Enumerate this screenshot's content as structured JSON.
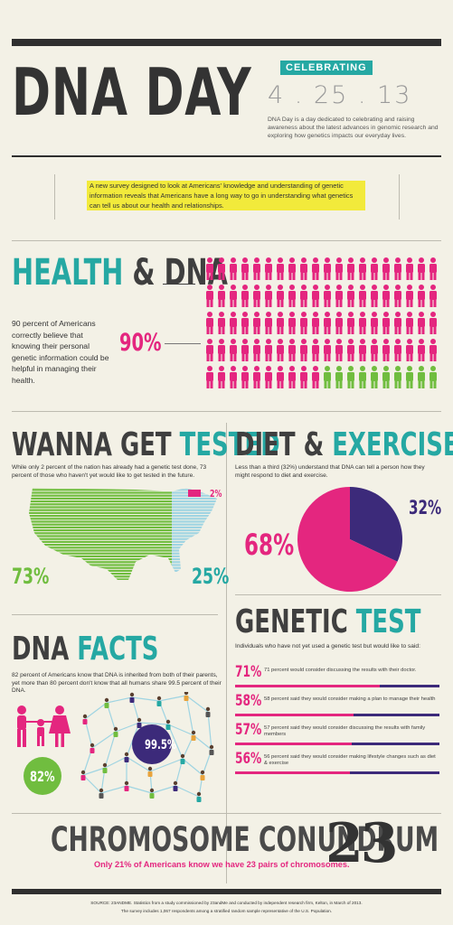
{
  "header": {
    "title": "DNA DAY",
    "celebrating": "CELEBRATING",
    "date": "4 . 25 . 13",
    "description": "DNA Day is a day dedicated to celebrating and raising awareness about the latest advances in genomic research and exploring how genetics impacts our everyday lives."
  },
  "intro": "A new survey designed to look at Americans' knowledge and understanding of genetic information reveals that Americans have a long way to go in understanding what genetics can tell us about our health and relationships.",
  "health": {
    "title_a": "HEALTH",
    "title_b": " & DNA",
    "text": "90 percent of Americans correctly believe that knowing their personal genetic information could be helpful in managing their health.",
    "pct": "90%",
    "share": 0.9,
    "people_total": 100
  },
  "tested": {
    "title_a": "WANNA GET ",
    "title_b": "TESTED",
    "text": "While only 2 percent of the nation has already had a genetic test done, 73 percent of those who haven't yet would like to get tested in the future.",
    "pct_green": "73%",
    "pct_blue": "25%",
    "pct_pink": "2%",
    "shares": {
      "want": 73,
      "not": 25,
      "tested": 2
    }
  },
  "diet": {
    "title_a": "DIET & ",
    "title_b": "EXERCISE",
    "text": "Less than a third (32%) understand that DNA can tell a person how they might respond to diet and exercise.",
    "pct_pink": "68%",
    "pct_purple": "32%",
    "pie": [
      68,
      32
    ]
  },
  "facts": {
    "title_a": "DNA ",
    "title_b": "FACTS",
    "text": "82 percent of Americans know that DNA is inherited from both of their parents, yet more than 80 percent don't know that all humans share 99.5 percent of their DNA.",
    "pct_green": "82%",
    "pct_network": "99.5%"
  },
  "genetic": {
    "title_a": "GENETIC ",
    "title_b": "TEST",
    "intro": "Individuals who have not yet used a genetic test but would like to said:",
    "rows": [
      {
        "pct": "71%",
        "text": "71 percent would consider discussing the results with their doctor.",
        "value": 71
      },
      {
        "pct": "58%",
        "text": "58 percent said they would consider making a plan to manage their health",
        "value": 58
      },
      {
        "pct": "57%",
        "text": "57 percent said they would consider discussing the results with family members",
        "value": 57
      },
      {
        "pct": "56%",
        "text": "56 percent said they would consider making lifestyle changes such as diet & exercise",
        "value": 56
      }
    ]
  },
  "chromosome": {
    "title": "CHROMOSOME CONUNDRUM",
    "number": "23",
    "text": "Only 21% of Americans know we have 23 pairs of chromosomes."
  },
  "source": {
    "line1": "SOURCE: 23ANDME. Statistics from a study commissioned by 23andMe and conducted by independent research firm, Kelton, in March of 2013.",
    "line2": "The survey includes 1,067 respondents among a stratified random sample representative of the U.S. Population."
  },
  "colors": {
    "teal": "#25a8a3",
    "pink": "#e4267f",
    "green": "#70bd3f",
    "purple": "#3c2a7a",
    "blue": "#9fd4e2",
    "yellow": "#f2ea3b"
  }
}
